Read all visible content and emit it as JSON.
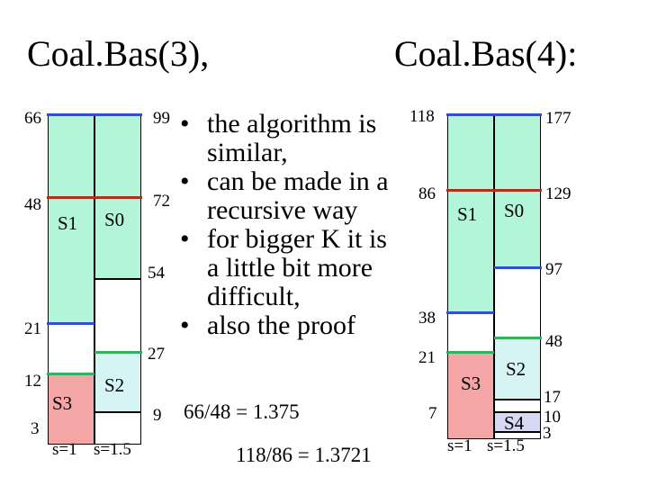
{
  "titles": {
    "left": "Coal.Bas(3),",
    "right": "Coal.Bas(4):"
  },
  "bullets": [
    "the algorithm is\nsimilar,",
    "can be made in a\nrecursive way",
    "for bigger K it is\na little bit more\ndifficult,",
    "also the proof"
  ],
  "left_diagram": {
    "ticks_left": [
      "66",
      "48",
      "21",
      "12",
      "3"
    ],
    "ticks_right": [
      "99",
      "72",
      "54",
      "27",
      "9"
    ],
    "labels": {
      "s1": "S1",
      "s0": "S0",
      "s2": "S2",
      "s3": "S3"
    },
    "axis": {
      "col1": "s=1",
      "col2": "s=1.5"
    },
    "ratio": "66/48  = 1.375"
  },
  "right_diagram": {
    "ticks_left": [
      "118",
      "86",
      "38",
      "21",
      "7"
    ],
    "ticks_right": [
      "177",
      "129",
      "97",
      "48",
      "17",
      "10",
      "3"
    ],
    "labels": {
      "s1": "S1",
      "s0": "S0",
      "s2": "S2",
      "s3": "S3",
      "s4": "S4"
    },
    "axis": {
      "col1": "s=1",
      "col2": "s=1.5"
    },
    "ratio": "118/86 = 1.3721"
  },
  "colors": {
    "green": "#b3f5d8",
    "white": "#ffffff",
    "cyan": "#d6f4f4",
    "pink": "#f4a6a6",
    "lavender": "#d6d8f4",
    "red_line": "#b03020",
    "blue_line": "#3050d0",
    "green_line": "#30b060"
  }
}
